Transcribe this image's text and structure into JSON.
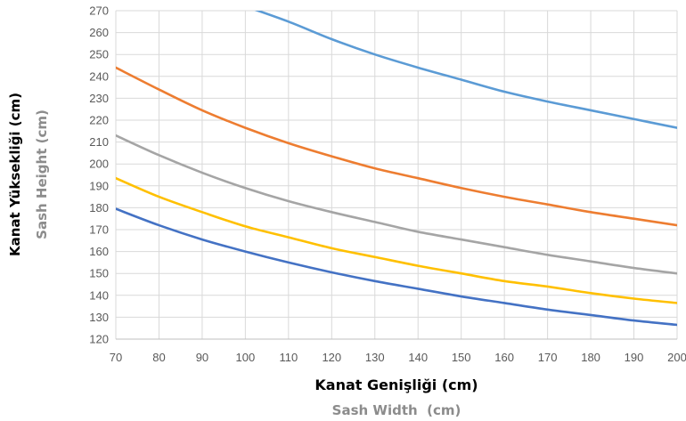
{
  "chart_data": {
    "type": "line",
    "xlabel": "Kanat Genişliği (cm)",
    "xlabel_secondary": "Sash Width  (cm)",
    "ylabel": "Kanat Yüksekliği (cm)",
    "ylabel_secondary": "Sash Height (cm)",
    "xlim": [
      70,
      200
    ],
    "ylim": [
      120,
      270
    ],
    "xticks": [
      70,
      80,
      90,
      100,
      110,
      120,
      130,
      140,
      150,
      160,
      170,
      180,
      190,
      200
    ],
    "yticks": [
      120,
      130,
      140,
      150,
      160,
      170,
      180,
      190,
      200,
      210,
      220,
      230,
      240,
      250,
      260,
      270
    ],
    "grid": true,
    "x": [
      70,
      80,
      90,
      100,
      110,
      120,
      130,
      140,
      150,
      160,
      170,
      180,
      190,
      200
    ],
    "series": [
      {
        "color": "#5B9BD5",
        "values": [
          null,
          null,
          null,
          272,
          265,
          257,
          250,
          244,
          238.5,
          233,
          228.5,
          224.5,
          220.5,
          216.5
        ]
      },
      {
        "color": "#ED7D31",
        "values": [
          244,
          234,
          224.5,
          216.5,
          209.5,
          203.5,
          198,
          193.5,
          189,
          185,
          181.5,
          178,
          175,
          172
        ]
      },
      {
        "color": "#A5A5A5",
        "values": [
          213,
          204,
          196,
          189,
          183,
          178,
          173.5,
          169,
          165.5,
          162,
          158.5,
          155.5,
          152.5,
          150
        ]
      },
      {
        "color": "#FFC000",
        "values": [
          193.5,
          185,
          178,
          171.5,
          166.5,
          161.5,
          157.5,
          153.5,
          150,
          146.5,
          144,
          141,
          138.5,
          136.5
        ]
      },
      {
        "color": "#4472C4",
        "values": [
          179.5,
          172,
          165.5,
          160,
          155,
          150.5,
          146.5,
          143,
          139.5,
          136.5,
          133.5,
          131,
          128.5,
          126.5
        ]
      }
    ]
  }
}
